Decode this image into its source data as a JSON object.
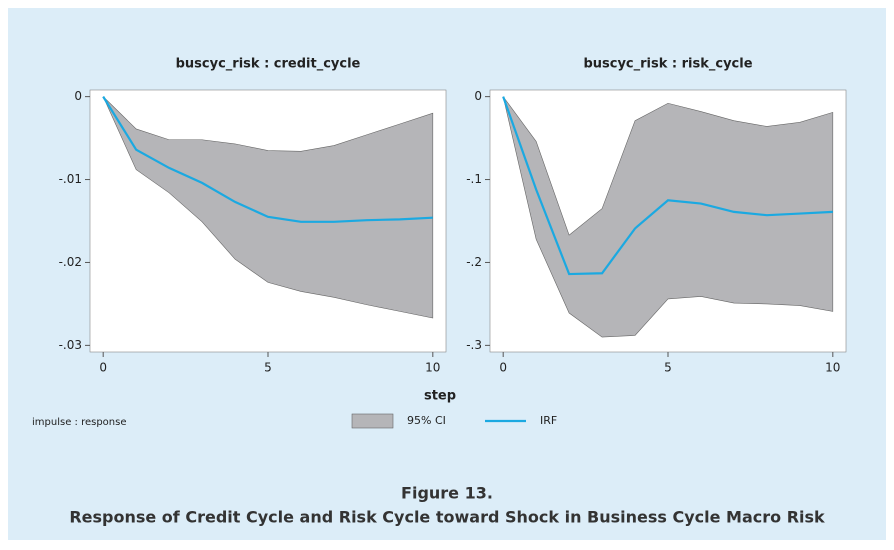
{
  "chart_data": [
    {
      "type": "line",
      "title": "buscyc_risk : credit_cycle",
      "x": [
        0,
        1,
        2,
        3,
        4,
        5,
        6,
        7,
        8,
        9,
        10
      ],
      "series": [
        {
          "name": "95% CI",
          "color": "#b5b5b8",
          "upper": [
            0,
            -0.0039,
            -0.0052,
            -0.0052,
            -0.0057,
            -0.0065,
            -0.0066,
            -0.0059,
            -0.0046,
            -0.0033,
            -0.002
          ],
          "lower": [
            0,
            -0.0088,
            -0.0116,
            -0.0151,
            -0.0196,
            -0.0224,
            -0.0235,
            -0.0242,
            -0.0251,
            -0.0259,
            -0.0267
          ]
        },
        {
          "name": "IRF",
          "color": "#1ba9e1",
          "values": [
            0,
            -0.0064,
            -0.0086,
            -0.0104,
            -0.0127,
            -0.0145,
            -0.0151,
            -0.0151,
            -0.0149,
            -0.0148,
            -0.0146
          ]
        }
      ],
      "xlim": [
        -0.4,
        10.4
      ],
      "xticks": [
        0,
        5,
        10
      ],
      "ylim": [
        -0.0308,
        0.0008
      ],
      "yticks": [
        0,
        {
          "value": -0.01,
          "label": "-.01"
        },
        {
          "value": -0.02,
          "label": "-.02"
        },
        {
          "value": -0.03,
          "label": "-.03"
        }
      ]
    },
    {
      "type": "line",
      "title": "buscyc_risk : risk_cycle",
      "x": [
        0,
        1,
        2,
        3,
        4,
        5,
        6,
        7,
        8,
        9,
        10
      ],
      "series": [
        {
          "name": "95% CI",
          "color": "#b5b5b8",
          "upper": [
            0,
            -0.054,
            -0.167,
            -0.135,
            -0.029,
            -0.008,
            -0.018,
            -0.029,
            -0.036,
            -0.031,
            -0.019
          ],
          "lower": [
            0,
            -0.172,
            -0.261,
            -0.29,
            -0.288,
            -0.244,
            -0.241,
            -0.249,
            -0.25,
            -0.252,
            -0.259
          ]
        },
        {
          "name": "IRF",
          "color": "#1ba9e1",
          "values": [
            0,
            -0.112,
            -0.214,
            -0.213,
            -0.159,
            -0.125,
            -0.129,
            -0.139,
            -0.143,
            -0.141,
            -0.139
          ]
        }
      ],
      "xlim": [
        -0.4,
        10.4
      ],
      "xticks": [
        0,
        5,
        10
      ],
      "ylim": [
        -0.308,
        0.008
      ],
      "yticks": [
        0,
        {
          "value": -0.1,
          "label": "-.1"
        },
        {
          "value": -0.2,
          "label": "-.2"
        },
        {
          "value": -0.3,
          "label": "-.3"
        }
      ]
    }
  ],
  "xlabel": "step",
  "note": "impulse : response",
  "caption": {
    "label": "Figure 13.",
    "text": "Response of Credit Cycle and Risk Cycle toward Shock in Business Cycle Macro Risk"
  }
}
